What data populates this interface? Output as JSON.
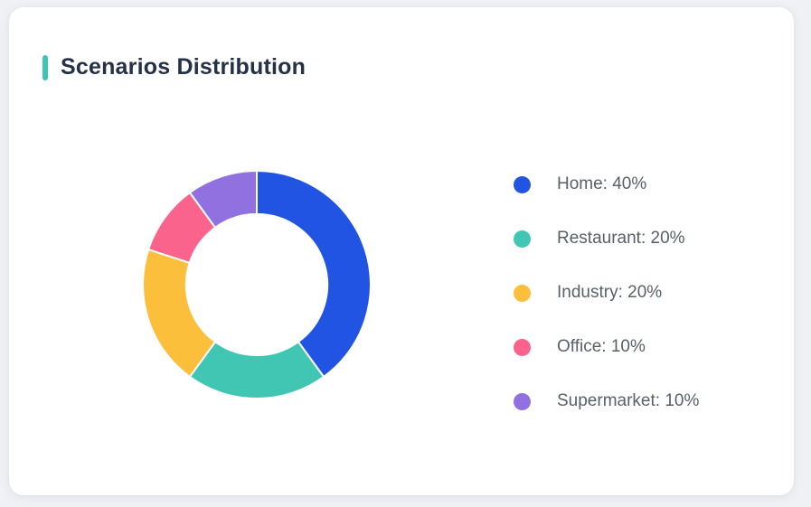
{
  "card": {
    "title": "Scenarios Distribution",
    "accent_color": "#3EC4B5",
    "background": "#ffffff"
  },
  "page": {
    "background": "#f0f1f5"
  },
  "chart_data": {
    "type": "pie",
    "subtype": "donut",
    "title": "Scenarios Distribution",
    "labels": [
      "Home",
      "Restaurant",
      "Industry",
      "Office",
      "Supermarket"
    ],
    "values": [
      40,
      20,
      20,
      10,
      10
    ],
    "unit": "%",
    "colors": [
      "#2254E3",
      "#41C6B4",
      "#FCBF3C",
      "#F9638C",
      "#9071DF"
    ],
    "start_angle_deg": 0,
    "direction": "clockwise",
    "inner_radius_ratio": 0.62,
    "segment_gap_color": "#ffffff",
    "legend_position": "right",
    "legend": [
      {
        "text": "Home: 40%",
        "color": "#2254E3"
      },
      {
        "text": "Restaurant: 20%",
        "color": "#41C6B4"
      },
      {
        "text": "Industry: 20%",
        "color": "#FCBF3C"
      },
      {
        "text": "Office: 10%",
        "color": "#F9638C"
      },
      {
        "text": "Supermarket: 10%",
        "color": "#9071DF"
      }
    ]
  }
}
